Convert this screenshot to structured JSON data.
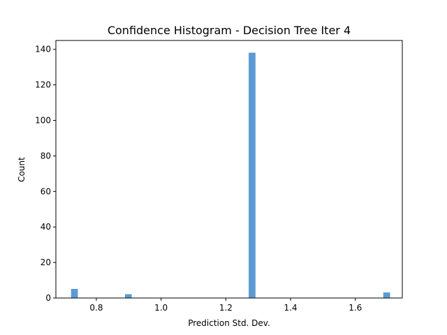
{
  "chart_data": {
    "type": "bar",
    "title": "Confidence Histogram - Decision Tree Iter 4",
    "xlabel": "Prediction Std. Dev.",
    "ylabel": "Count",
    "xlim": [
      0.675,
      1.745
    ],
    "ylim": [
      0,
      145
    ],
    "bin_width": 0.0196,
    "bins": [
      {
        "x_start": 0.7225,
        "count": 5
      },
      {
        "x_start": 0.8891,
        "count": 2
      },
      {
        "x_start": 1.2713,
        "count": 138
      },
      {
        "x_start": 1.6869,
        "count": 3
      }
    ],
    "x_ticks": [
      {
        "value": 0.8,
        "label": "0.8"
      },
      {
        "value": 1.0,
        "label": "1.0"
      },
      {
        "value": 1.2,
        "label": "1.2"
      },
      {
        "value": 1.4,
        "label": "1.4"
      },
      {
        "value": 1.6,
        "label": "1.6"
      }
    ],
    "y_ticks": [
      {
        "value": 0,
        "label": "0"
      },
      {
        "value": 20,
        "label": "20"
      },
      {
        "value": 40,
        "label": "40"
      },
      {
        "value": 60,
        "label": "60"
      },
      {
        "value": 80,
        "label": "80"
      },
      {
        "value": 100,
        "label": "100"
      },
      {
        "value": 120,
        "label": "120"
      },
      {
        "value": 140,
        "label": "140"
      }
    ],
    "grid": false,
    "colors": {
      "bar": "#5b9bd5",
      "bar_edge": "#4a8bc6",
      "axis": "#000000"
    }
  }
}
